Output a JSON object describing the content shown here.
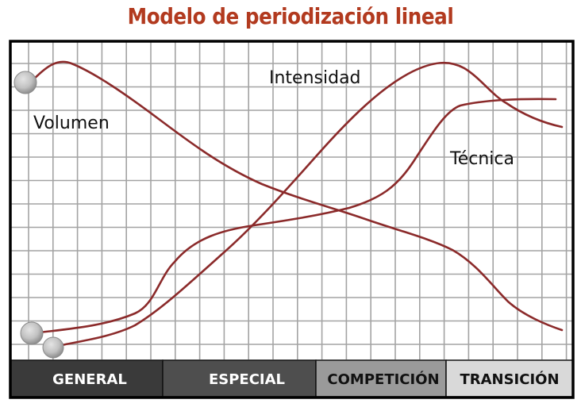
{
  "header": {
    "title": "Modelo de periodización lineal"
  },
  "labels": {
    "volumen": "Volumen",
    "intensidad": "Intensidad",
    "tecnica": "Técnica"
  },
  "phases": [
    {
      "label": "GENERAL",
      "bg": "#3a3a3a",
      "fg": "#ffffff"
    },
    {
      "label": "ESPECIAL",
      "bg": "#4e4e4e",
      "fg": "#ffffff"
    },
    {
      "label": "COMPETICIÓN",
      "bg": "#9a9a9a",
      "fg": "#111111"
    },
    {
      "label": "TRANSICIÓN",
      "bg": "#d9d9d9",
      "fg": "#111111"
    }
  ],
  "colors": {
    "title": "#b23a1f",
    "curve": "#8b2a2a",
    "grid": "#a0a0a0",
    "frame": "#000000",
    "marker": "#bdbdbd"
  },
  "chart_data": {
    "type": "line",
    "title": "Modelo de periodización lineal",
    "xlabel": "",
    "ylabel": "",
    "grid": true,
    "x_range": [
      0,
      22
    ],
    "y_range": [
      0,
      12
    ],
    "x_categories_bands": [
      "GENERAL",
      "ESPECIAL",
      "COMPETICIÓN",
      "TRANSICIÓN"
    ],
    "series": [
      {
        "name": "Volumen",
        "x": [
          0.5,
          2,
          4,
          6,
          8,
          10,
          12,
          14,
          16,
          17,
          18,
          19,
          20,
          21
        ],
        "y": [
          11.4,
          12,
          11.2,
          9.8,
          8.3,
          7.1,
          6.5,
          5.6,
          4.9,
          4.3,
          3.2,
          2.0,
          1.2,
          0.8
        ]
      },
      {
        "name": "Intensidad",
        "x": [
          1,
          3,
          5,
          6,
          8,
          10,
          12,
          14,
          16,
          17,
          18,
          19,
          20,
          21
        ],
        "y": [
          0.4,
          0.7,
          1.5,
          2.7,
          4.7,
          6.8,
          8.8,
          10.5,
          11.7,
          11.8,
          11.3,
          9.8,
          9.1,
          8.8
        ]
      },
      {
        "name": "Técnica",
        "x": [
          0.5,
          2,
          4,
          5,
          6,
          8,
          10,
          12,
          14,
          15,
          16,
          17,
          18,
          19,
          20,
          21
        ],
        "y": [
          0.8,
          1.0,
          1.6,
          2.5,
          4.3,
          5.4,
          5.6,
          6.0,
          6.8,
          8.0,
          9.8,
          10.2,
          10.3,
          10.4,
          10.4,
          10.4
        ]
      }
    ],
    "annotations": [
      "Volumen",
      "Intensidad",
      "Técnica"
    ],
    "start_markers": [
      "Volumen start (top-left)",
      "Técnica start (bottom-left)",
      "Intensidad start (bottom-left)"
    ]
  }
}
